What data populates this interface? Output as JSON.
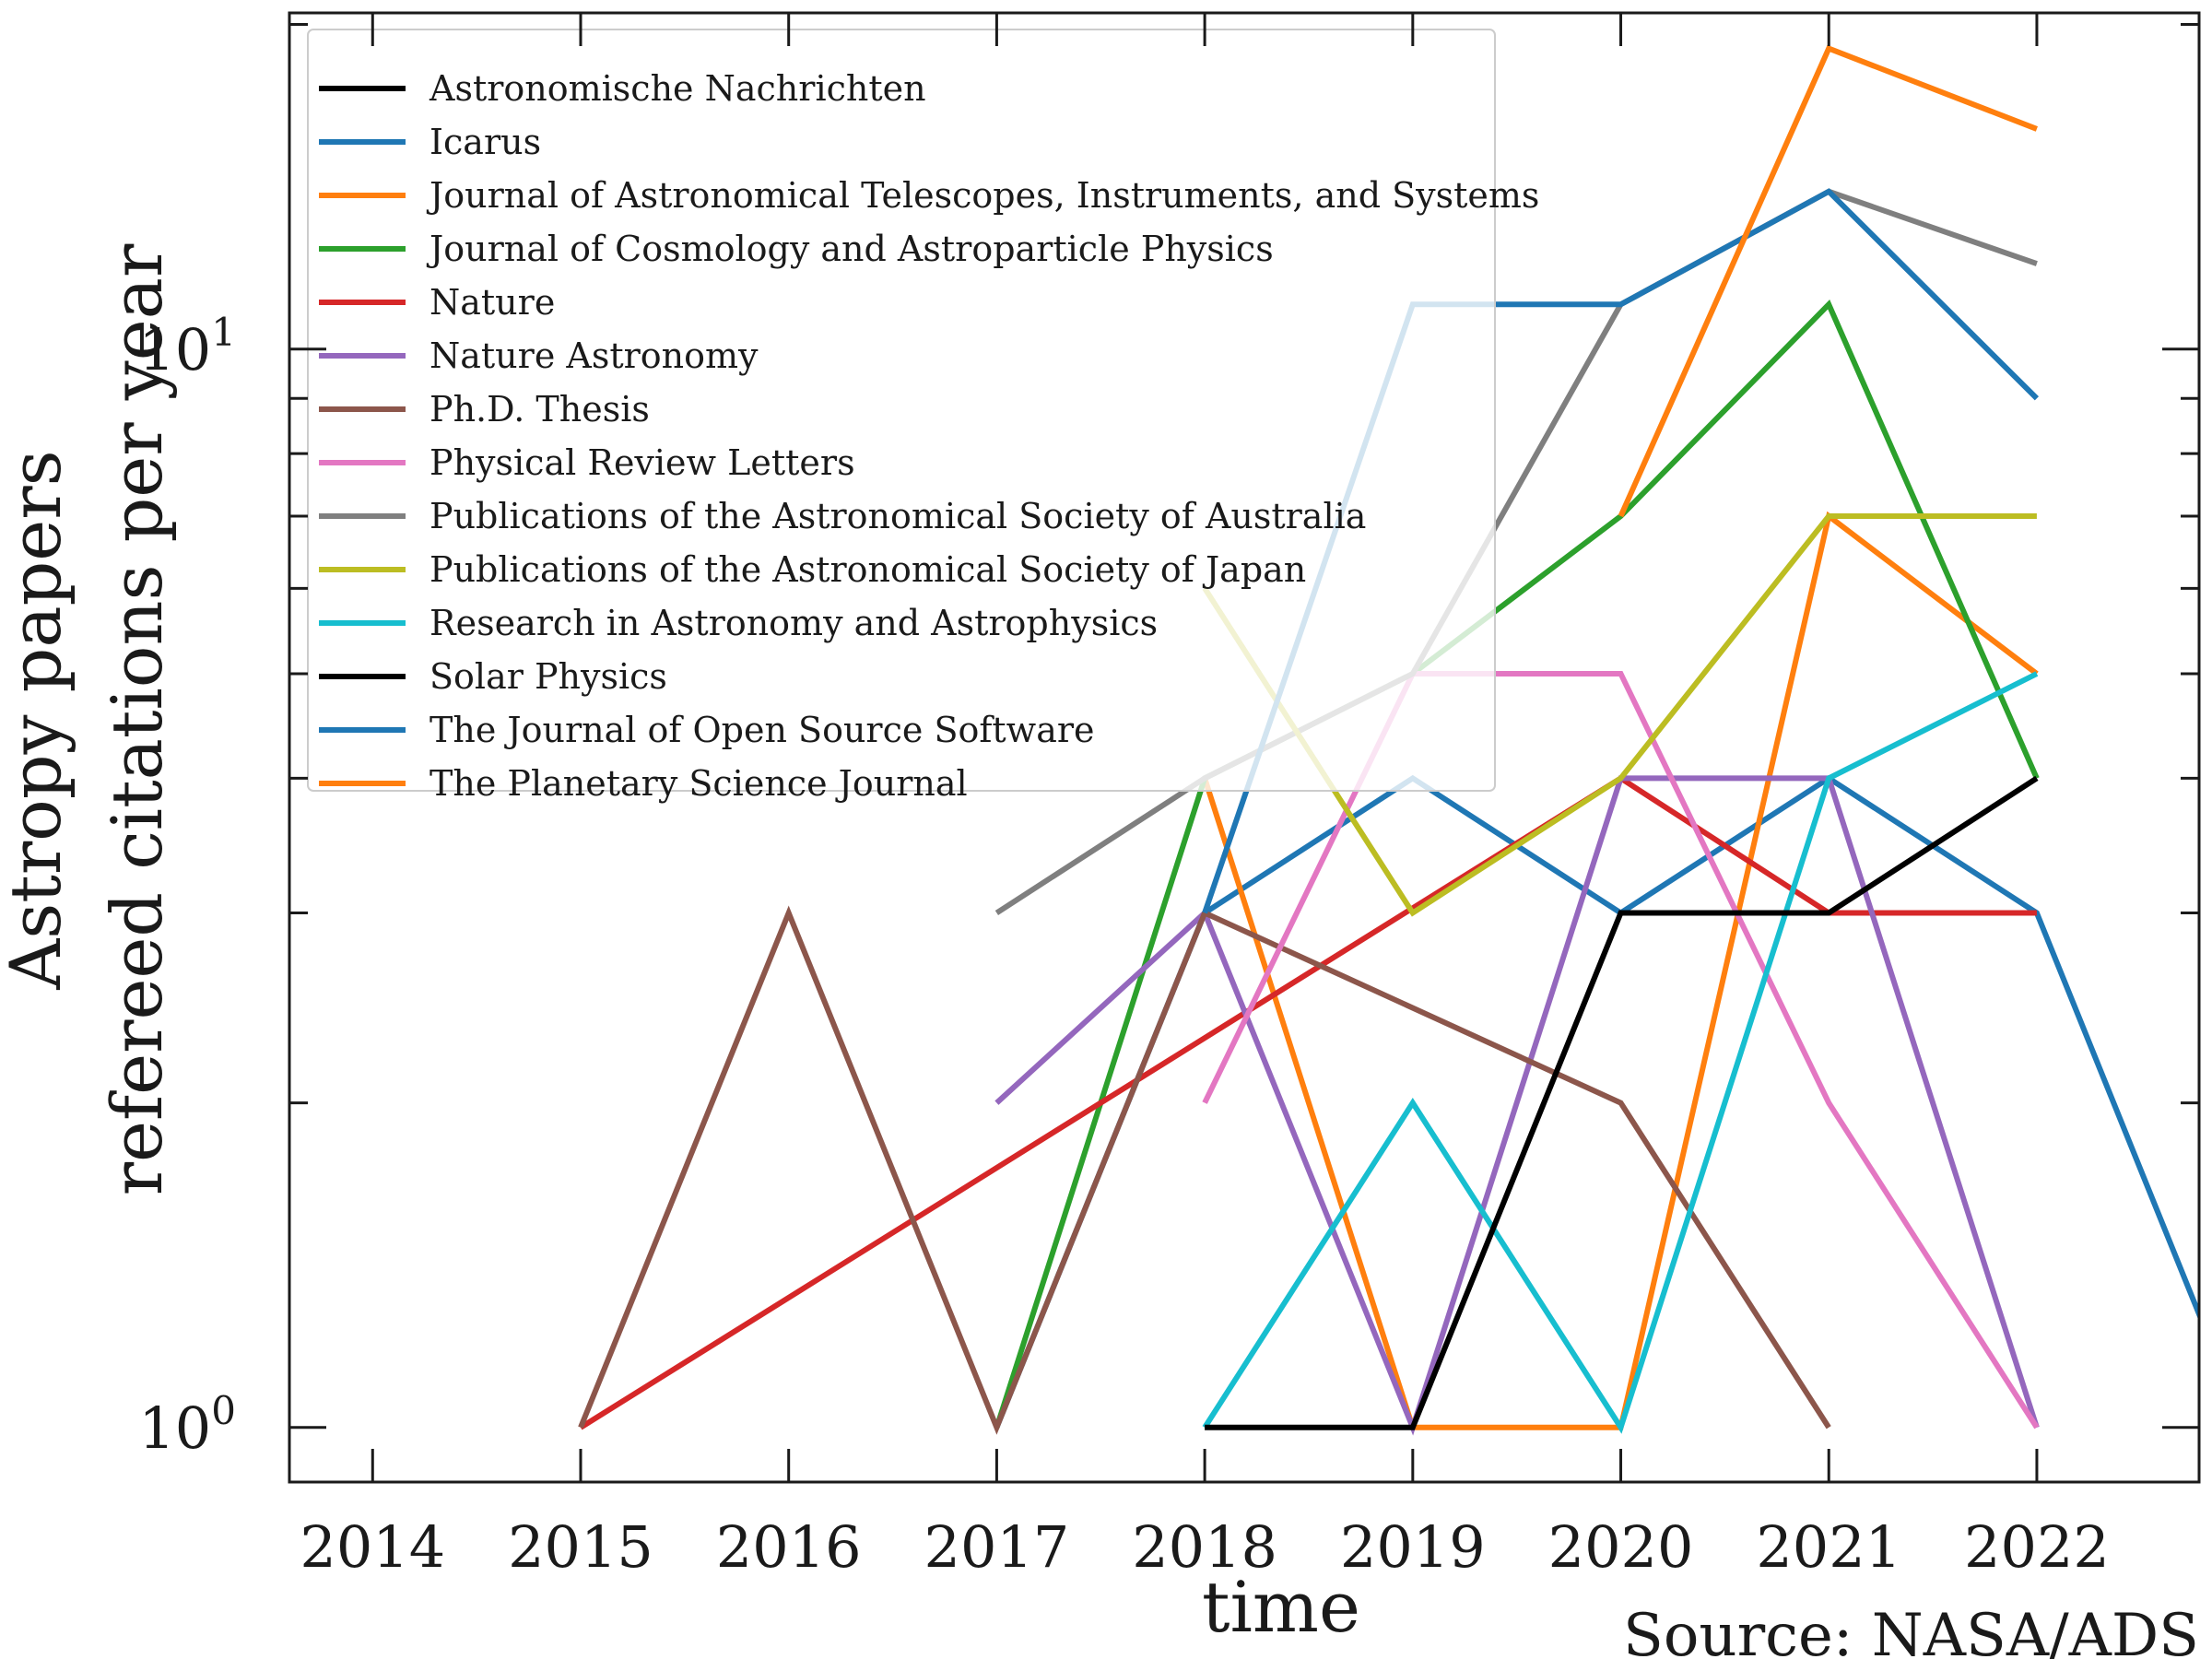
{
  "chart_data": {
    "type": "line",
    "title": "",
    "xlabel": "time",
    "ylabel": "Astropy papers\nrefereed citations per year",
    "ylabel_lines": [
      "Astropy papers",
      "refereed citations per year"
    ],
    "yscale": "log",
    "xlim": [
      2013.6,
      2022.78
    ],
    "ylim": [
      0.89,
      20.5
    ],
    "x_ticks": [
      2014,
      2015,
      2016,
      2017,
      2018,
      2019,
      2020,
      2021,
      2022
    ],
    "x_tick_labels": [
      "2014",
      "2015",
      "2016",
      "2017",
      "2018",
      "2019",
      "2020",
      "2021",
      "2022"
    ],
    "y_major_ticks": [
      {
        "value": 1,
        "base": "10",
        "exp": "0"
      },
      {
        "value": 10,
        "base": "10",
        "exp": "1"
      }
    ],
    "grid": false,
    "legend_placement": "top-left",
    "source_note": "Source: NASA/ADS",
    "series": [
      {
        "name": "Astronomische Nachrichten",
        "color": "#000000",
        "points": []
      },
      {
        "name": "Icarus",
        "color": "#1f77b4",
        "points": [
          [
            2017,
            1
          ],
          [
            2018,
            3
          ],
          [
            2019,
            4
          ],
          [
            2020,
            3
          ],
          [
            2021,
            4
          ],
          [
            2022,
            3
          ],
          [
            2023,
            1
          ]
        ]
      },
      {
        "name": "Journal of Astronomical Telescopes, Instruments, and Systems",
        "color": "#ff7f0e",
        "points": [
          [
            2018,
            4
          ],
          [
            2019,
            1
          ],
          [
            2020,
            1
          ],
          [
            2021,
            7
          ],
          [
            2022,
            5
          ]
        ]
      },
      {
        "name": "Journal of Cosmology and Astroparticle Physics",
        "color": "#2ca02c",
        "points": [
          [
            2017,
            1
          ],
          [
            2018,
            4
          ],
          [
            2019,
            5
          ],
          [
            2020,
            7
          ],
          [
            2021,
            11
          ],
          [
            2022,
            4
          ]
        ]
      },
      {
        "name": "Nature",
        "color": "#d62728",
        "points": [
          [
            2015,
            1
          ],
          [
            2020,
            4
          ],
          [
            2021,
            3
          ],
          [
            2022,
            3
          ]
        ]
      },
      {
        "name": "Nature Astronomy",
        "color": "#9467bd",
        "points": [
          [
            2017,
            2
          ],
          [
            2018,
            3
          ],
          [
            2019,
            1
          ],
          [
            2020,
            4
          ],
          [
            2021,
            4
          ],
          [
            2022,
            1
          ]
        ]
      },
      {
        "name": "Ph.D. Thesis",
        "color": "#8c564b",
        "points": [
          [
            2015,
            1
          ],
          [
            2016,
            3
          ],
          [
            2017,
            1
          ],
          [
            2018,
            3
          ],
          [
            2020,
            2
          ],
          [
            2021,
            1
          ]
        ]
      },
      {
        "name": "Physical Review Letters",
        "color": "#e377c2",
        "points": [
          [
            2018,
            2
          ],
          [
            2019,
            5
          ],
          [
            2020,
            5
          ],
          [
            2021,
            2
          ],
          [
            2022,
            1
          ]
        ]
      },
      {
        "name": "Publications of the Astronomical Society of Australia",
        "color": "#7f7f7f",
        "points": [
          [
            2017,
            3
          ],
          [
            2018,
            4
          ],
          [
            2019,
            5
          ],
          [
            2020,
            11
          ],
          [
            2021,
            14
          ],
          [
            2022,
            12
          ]
        ]
      },
      {
        "name": "Publications of the Astronomical Society of Japan",
        "color": "#bcbd22",
        "points": [
          [
            2018,
            6
          ],
          [
            2019,
            3
          ],
          [
            2020,
            4
          ],
          [
            2021,
            7
          ],
          [
            2022,
            7
          ]
        ]
      },
      {
        "name": "Research in Astronomy and Astrophysics",
        "color": "#17becf",
        "points": [
          [
            2018,
            1
          ],
          [
            2019,
            2
          ],
          [
            2020,
            1
          ],
          [
            2021,
            4
          ],
          [
            2022,
            5
          ]
        ]
      },
      {
        "name": "Solar Physics",
        "color": "#000000",
        "points": [
          [
            2018,
            1
          ],
          [
            2019,
            1
          ],
          [
            2020,
            3
          ],
          [
            2021,
            3
          ],
          [
            2022,
            4
          ]
        ]
      },
      {
        "name": "The Journal of Open Source Software",
        "color": "#1f77b4",
        "points": [
          [
            2018,
            3
          ],
          [
            2019,
            11
          ],
          [
            2020,
            11
          ],
          [
            2021,
            14
          ],
          [
            2022,
            9
          ]
        ]
      },
      {
        "name": "The Planetary Science Journal",
        "color": "#ff7f0e",
        "points": [
          [
            2020,
            7
          ],
          [
            2021,
            19
          ],
          [
            2022,
            16
          ]
        ]
      }
    ]
  }
}
